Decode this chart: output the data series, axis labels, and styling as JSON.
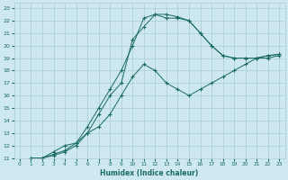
{
  "xlabel": "Humidex (Indice chaleur)",
  "background_color": "#cde8ee",
  "grid_color": "#a8cdd4",
  "line_color": "#1a6b60",
  "xlim": [
    -0.5,
    23.5
  ],
  "ylim": [
    11,
    23.4
  ],
  "xticks": [
    0,
    1,
    2,
    3,
    4,
    5,
    6,
    7,
    8,
    9,
    10,
    11,
    12,
    13,
    14,
    15,
    16,
    17,
    18,
    19,
    20,
    21,
    22,
    23
  ],
  "yticks": [
    11,
    12,
    13,
    14,
    15,
    16,
    17,
    18,
    19,
    20,
    21,
    22,
    23
  ],
  "curve1_x": [
    1,
    2,
    3,
    4,
    5,
    6,
    7,
    8,
    9,
    10,
    11,
    12,
    13,
    14,
    15,
    16,
    17,
    18,
    19,
    20,
    21,
    22,
    23
  ],
  "curve1_y": [
    11,
    11,
    11.5,
    12,
    12.2,
    13,
    13.5,
    14.5,
    16,
    17.5,
    18.5,
    18,
    17,
    16.5,
    16,
    16.5,
    17,
    17.5,
    18,
    18.5,
    19,
    19,
    19.2
  ],
  "curve2_x": [
    1,
    2,
    3,
    4,
    5,
    6,
    7,
    8,
    9,
    10,
    11,
    12,
    13,
    14,
    15,
    16,
    17,
    18,
    19,
    20,
    21,
    22,
    23
  ],
  "curve2_y": [
    11,
    11,
    11.2,
    11.5,
    12,
    13,
    14.5,
    16,
    17,
    20.5,
    21.5,
    22.5,
    22.2,
    22.2,
    22,
    21,
    20,
    19.2,
    19,
    19,
    19,
    19.2,
    19.3
  ],
  "curve3_x": [
    1,
    2,
    3,
    4,
    5,
    6,
    7,
    8,
    9,
    10,
    11,
    12,
    13,
    14,
    15,
    16,
    17,
    18,
    19,
    20,
    21,
    22,
    23
  ],
  "curve3_y": [
    11,
    11,
    11.3,
    11.6,
    12.2,
    13.5,
    15,
    16.5,
    18,
    20,
    22.2,
    22.5,
    22.5,
    22.3,
    22,
    21,
    20,
    19.2,
    19,
    19,
    19,
    19.2,
    19.3
  ]
}
